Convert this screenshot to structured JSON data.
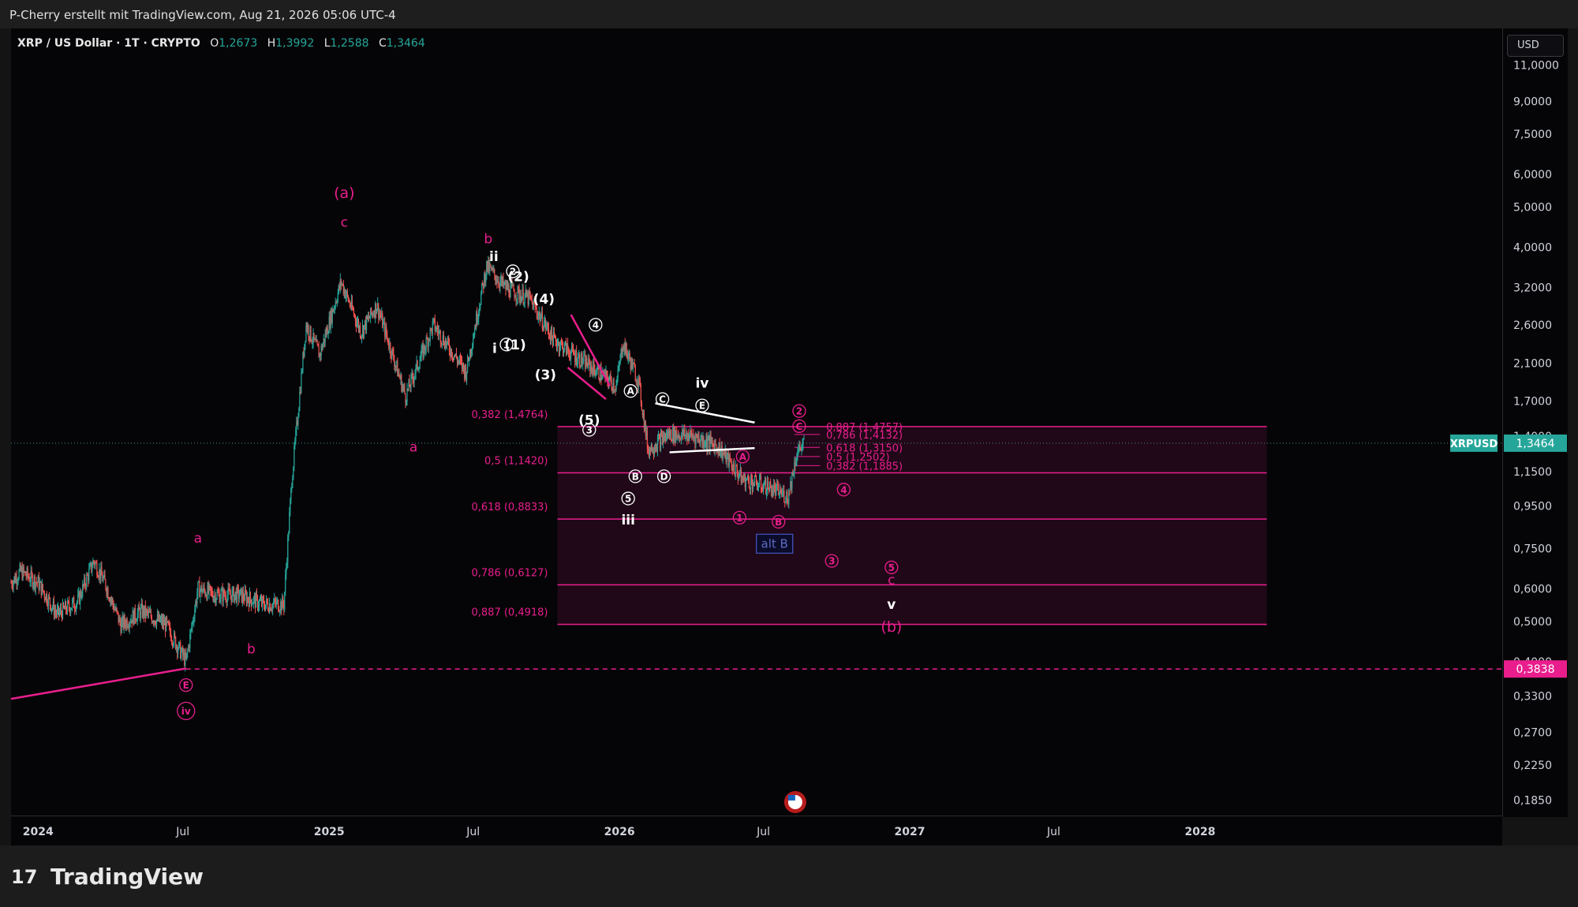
{
  "header": {
    "attribution": "P-Cherry erstellt mit TradingView.com, Aug 21, 2026 05:06 UTC-4"
  },
  "legend": {
    "symbol": "XRP / US Dollar · 1T · CRYPTO",
    "open_label": "O",
    "open": "1,2673",
    "high_label": "H",
    "high": "1,3992",
    "low_label": "L",
    "low": "1,2588",
    "close_label": "C",
    "close": "1,3464"
  },
  "currency_button": "USD",
  "footer": {
    "brand": "TradingView",
    "brand_mark": "17"
  },
  "colors": {
    "magenta": "#e91e8c",
    "white": "#ffffff",
    "up": "#26a69a",
    "down": "#ef5350",
    "price_tag": "#26a69a",
    "support_tag": "#e91e8c"
  },
  "chart_data": {
    "type": "candlestick",
    "title": "",
    "xlabel": "",
    "ylabel": "",
    "y_scale": "log",
    "ylim": [
      0.17,
      13.5
    ],
    "price_ticks": [
      "11,0000",
      "9,0000",
      "7,5000",
      "6,0000",
      "5,0000",
      "4,0000",
      "3,2000",
      "2,6000",
      "2,1000",
      "1,7000",
      "1,4000",
      "1,1500",
      "0,9500",
      "0,7500",
      "0,6000",
      "0,5000",
      "0,4000",
      "0,3300",
      "0,2700",
      "0,2250",
      "0,1850"
    ],
    "price_tick_values": [
      11.0,
      9.0,
      7.5,
      6.0,
      5.0,
      4.0,
      3.2,
      2.6,
      2.1,
      1.7,
      1.4,
      1.15,
      0.95,
      0.75,
      0.6,
      0.5,
      0.4,
      0.33,
      0.27,
      0.225,
      0.185
    ],
    "time_ticks": [
      "2024",
      "Jul",
      "2025",
      "Jul",
      "2026",
      "Jul",
      "2027",
      "Jul",
      "2028"
    ],
    "time_tick_values": [
      "2024-01-01",
      "2024-07-01",
      "2025-01-01",
      "2025-07-01",
      "2026-01-01",
      "2026-07-01",
      "2027-01-01",
      "2027-07-01",
      "2028-01-01"
    ],
    "xlim": [
      "2023-11-28",
      "2029-01-15"
    ],
    "current_price": {
      "symbol": "XRPUSD",
      "value": "1,3464",
      "y": 1.3464
    },
    "support_level": {
      "value": "0,3838",
      "y": 0.3838
    },
    "close_path": [
      [
        "2023-11-28",
        0.62
      ],
      [
        "2023-12-10",
        0.66
      ],
      [
        "2024-01-01",
        0.62
      ],
      [
        "2024-01-25",
        0.52
      ],
      [
        "2024-02-20",
        0.56
      ],
      [
        "2024-03-11",
        0.7
      ],
      [
        "2024-03-25",
        0.62
      ],
      [
        "2024-04-14",
        0.49
      ],
      [
        "2024-05-10",
        0.53
      ],
      [
        "2024-06-10",
        0.49
      ],
      [
        "2024-07-05",
        0.4
      ],
      [
        "2024-07-20",
        0.6
      ],
      [
        "2024-08-10",
        0.58
      ],
      [
        "2024-09-10",
        0.58
      ],
      [
        "2024-10-10",
        0.55
      ],
      [
        "2024-11-05",
        0.55
      ],
      [
        "2024-11-15",
        1.1
      ],
      [
        "2024-12-03",
        2.6
      ],
      [
        "2024-12-20",
        2.2
      ],
      [
        "2025-01-16",
        3.3
      ],
      [
        "2025-02-10",
        2.5
      ],
      [
        "2025-03-02",
        2.9
      ],
      [
        "2025-04-07",
        1.75
      ],
      [
        "2025-05-12",
        2.6
      ],
      [
        "2025-06-22",
        2.0
      ],
      [
        "2025-07-18",
        3.6
      ],
      [
        "2025-08-10",
        3.2
      ],
      [
        "2025-09-10",
        3.0
      ],
      [
        "2025-10-10",
        2.4
      ],
      [
        "2025-11-05",
        2.2
      ],
      [
        "2025-12-05",
        2.0
      ],
      [
        "2025-12-28",
        1.85
      ],
      [
        "2026-01-05",
        2.35
      ],
      [
        "2026-01-25",
        1.9
      ],
      [
        "2026-02-06",
        1.3
      ],
      [
        "2026-03-05",
        1.42
      ],
      [
        "2026-04-05",
        1.4
      ],
      [
        "2026-05-05",
        1.32
      ],
      [
        "2026-06-05",
        1.1
      ],
      [
        "2026-07-05",
        1.06
      ],
      [
        "2026-08-01",
        1.0
      ],
      [
        "2026-08-12",
        1.28
      ],
      [
        "2026-08-21",
        1.3464
      ]
    ],
    "fib_levels": [
      {
        "label": "0,382 (1,4764)",
        "value": 1.4764
      },
      {
        "label": "0,5 (1,1420)",
        "value": 1.142
      },
      {
        "label": "0,618 (0,8833)",
        "value": 0.8833
      },
      {
        "label": "0,786 (0,6127)",
        "value": 0.6127
      },
      {
        "label": "0,887 (0,4918)",
        "value": 0.4918
      }
    ],
    "fib_zone": {
      "from": "2025-10-15",
      "to": "2028-03-25"
    },
    "fib_small_levels": [
      {
        "label": "0,887 (1,4757)",
        "value": 1.4757
      },
      {
        "label": "0,786 (1,4132)",
        "value": 1.4132
      },
      {
        "label": "0,618 (1,3150)",
        "value": 1.315
      },
      {
        "label": "0,5 (1,2502)",
        "value": 1.2502
      },
      {
        "label": "0,382 (1,1885)",
        "value": 1.1885
      }
    ],
    "fib_small_zone": {
      "from": "2026-08-15",
      "to": "2026-09-10"
    },
    "trendlines": [
      {
        "from": [
          "2023-11-28",
          0.325
        ],
        "to": [
          "2024-07-05",
          0.385
        ],
        "color": "magenta"
      },
      {
        "from": [
          "2025-11-01",
          2.75
        ],
        "to": [
          "2025-12-20",
          1.85
        ],
        "color": "magenta"
      },
      {
        "from": [
          "2025-10-28",
          2.05
        ],
        "to": [
          "2025-12-15",
          1.72
        ],
        "color": "magenta"
      },
      {
        "from": [
          "2026-02-15",
          1.68
        ],
        "to": [
          "2026-06-20",
          1.51
        ],
        "color": "white"
      },
      {
        "from": [
          "2026-03-05",
          1.28
        ],
        "to": [
          "2026-06-20",
          1.31
        ],
        "color": "white"
      }
    ],
    "wave_labels": [
      {
        "text": "(a)",
        "x": "2025-01-20",
        "y": 5.4,
        "color": "magenta",
        "circled": false
      },
      {
        "text": "c",
        "x": "2025-01-20",
        "y": 4.6,
        "color": "magenta",
        "circled": false
      },
      {
        "text": "b",
        "x": "2025-07-20",
        "y": 4.2,
        "color": "magenta",
        "circled": false
      },
      {
        "text": "ii",
        "x": "2025-07-27",
        "y": 3.8,
        "color": "white",
        "circled": false
      },
      {
        "text": "2",
        "x": "2025-08-20",
        "y": 3.5,
        "color": "white",
        "circled": true
      },
      {
        "text": "(2)",
        "x": "2025-08-27",
        "y": 3.4,
        "color": "white",
        "circled": false
      },
      {
        "text": "(4)",
        "x": "2025-09-28",
        "y": 3.0,
        "color": "white",
        "circled": false
      },
      {
        "text": "4",
        "x": "2025-12-02",
        "y": 2.6,
        "color": "white",
        "circled": true
      },
      {
        "text": "i",
        "x": "2025-07-28",
        "y": 2.28,
        "color": "white",
        "circled": false
      },
      {
        "text": "1",
        "x": "2025-08-12",
        "y": 2.33,
        "color": "white",
        "circled": true
      },
      {
        "text": "(1)",
        "x": "2025-08-23",
        "y": 2.33,
        "color": "white",
        "circled": false
      },
      {
        "text": "(3)",
        "x": "2025-09-30",
        "y": 1.97,
        "color": "white",
        "circled": false
      },
      {
        "text": "a",
        "x": "2025-04-17",
        "y": 1.32,
        "color": "magenta",
        "circled": false
      },
      {
        "text": "(5)",
        "x": "2025-11-24",
        "y": 1.53,
        "color": "white",
        "circled": false
      },
      {
        "text": "3",
        "x": "2025-11-24",
        "y": 1.45,
        "color": "white",
        "circled": true
      },
      {
        "text": "A",
        "x": "2026-01-15",
        "y": 1.8,
        "color": "white",
        "circled": true
      },
      {
        "text": "C",
        "x": "2026-02-24",
        "y": 1.72,
        "color": "white",
        "circled": true
      },
      {
        "text": "iv",
        "x": "2026-04-15",
        "y": 1.88,
        "color": "white",
        "circled": false
      },
      {
        "text": "E",
        "x": "2026-04-15",
        "y": 1.66,
        "color": "white",
        "circled": true
      },
      {
        "text": "B",
        "x": "2026-01-21",
        "y": 1.12,
        "color": "white",
        "circled": true
      },
      {
        "text": "D",
        "x": "2026-02-26",
        "y": 1.12,
        "color": "white",
        "circled": true
      },
      {
        "text": "5",
        "x": "2026-01-12",
        "y": 0.99,
        "color": "white",
        "circled": true
      },
      {
        "text": "iii",
        "x": "2026-01-12",
        "y": 0.88,
        "color": "white",
        "circled": false
      },
      {
        "text": "2",
        "x": "2026-08-15",
        "y": 1.61,
        "color": "magenta",
        "circled": true
      },
      {
        "text": "C",
        "x": "2026-08-15",
        "y": 1.48,
        "color": "magenta",
        "circled": true
      },
      {
        "text": "A",
        "x": "2026-06-05",
        "y": 1.25,
        "color": "magenta",
        "circled": true
      },
      {
        "text": "4",
        "x": "2026-10-10",
        "y": 1.04,
        "color": "magenta",
        "circled": true
      },
      {
        "text": "1",
        "x": "2026-06-01",
        "y": 0.89,
        "color": "magenta",
        "circled": true
      },
      {
        "text": "B",
        "x": "2026-07-20",
        "y": 0.87,
        "color": "magenta",
        "circled": true
      },
      {
        "text": "3",
        "x": "2026-09-25",
        "y": 0.7,
        "color": "magenta",
        "circled": true
      },
      {
        "text": "5",
        "x": "2026-12-09",
        "y": 0.675,
        "color": "magenta",
        "circled": true
      },
      {
        "text": "c",
        "x": "2026-12-09",
        "y": 0.63,
        "color": "magenta",
        "circled": false
      },
      {
        "text": "v",
        "x": "2026-12-09",
        "y": 0.55,
        "color": "white",
        "circled": false
      },
      {
        "text": "(b)",
        "x": "2026-12-09",
        "y": 0.485,
        "color": "magenta",
        "circled": false
      },
      {
        "text": "a",
        "x": "2024-07-20",
        "y": 0.795,
        "color": "magenta",
        "circled": false
      },
      {
        "text": "b",
        "x": "2024-09-25",
        "y": 0.43,
        "color": "magenta",
        "circled": false
      },
      {
        "text": "E",
        "x": "2024-07-05",
        "y": 0.351,
        "color": "magenta",
        "circled": true
      },
      {
        "text": "iv",
        "x": "2024-07-05",
        "y": 0.304,
        "color": "magenta",
        "circled": true
      }
    ],
    "boxed_label": {
      "text": "alt B",
      "x": "2026-07-15",
      "y": 0.77
    }
  }
}
